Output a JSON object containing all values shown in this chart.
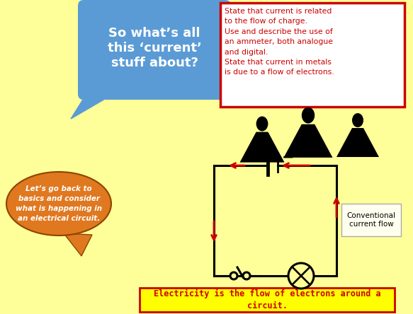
{
  "bg_color": "#FFFF99",
  "title_box_text": "So what’s all\nthis ‘current’\nstuff about?",
  "title_box_color": "#5B9BD5",
  "title_box_text_color": "#FFFFFF",
  "objectives_box_color": "#FFFFFF",
  "objectives_border_color": "#CC0000",
  "objectives_text_color": "#CC0000",
  "objectives_text": "State that current is related\nto the flow of charge.\nUse and describe the use of\nan ammeter, both analogue\nand digital.\nState that current in metals\nis due to a flow of electrons.",
  "speech_bubble_color": "#E07820",
  "speech_bubble_text": "Let’s go back to\nbasics and consider\nwhat is happening in\nan electrical circuit.",
  "speech_bubble_text_color": "#FFFFFF",
  "bottom_banner_color": "#FFFF00",
  "bottom_banner_border_color": "#CC0000",
  "bottom_banner_text": "Electricity is the flow of electrons around a\ncircuit.",
  "bottom_banner_text_color": "#CC0000",
  "circuit_color": "#000000",
  "arrow_color": "#CC0000",
  "conventional_label": "Conventional\ncurrent flow",
  "plus_minus_color": "#000000",
  "silhouette_color": "#000000"
}
